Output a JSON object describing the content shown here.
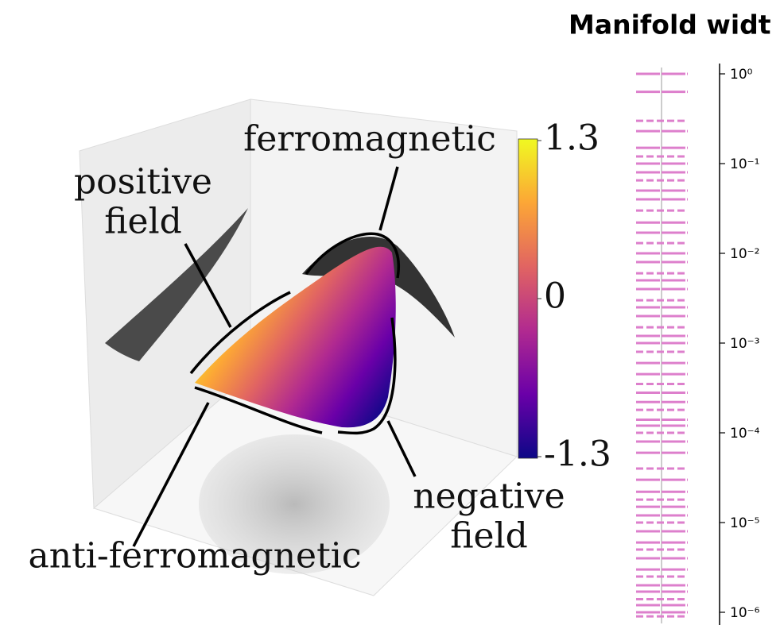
{
  "chart_data": [
    {
      "type": "manifold3d",
      "annotations": [
        [
          "ferromagnetic"
        ],
        [
          "positive",
          "field"
        ],
        [
          "negative",
          "field"
        ],
        [
          "anti-ferromagnetic"
        ]
      ],
      "colormap": [
        "#0d0887",
        "#6a00a8",
        "#b12a90",
        "#e16462",
        "#fca636",
        "#f0f921"
      ],
      "clim": [
        -1.3,
        1.3
      ],
      "cticks": [
        1.3,
        0,
        -1.3
      ]
    },
    {
      "type": "eventplot",
      "title": "Manifold widt",
      "yscale": "log",
      "color": "#dd7fcc",
      "ylim": [
        8e-07,
        1.3
      ],
      "yticks": [
        {
          "value": 1,
          "label": "10⁰"
        },
        {
          "value": 0.1,
          "label": "10⁻¹"
        },
        {
          "value": 0.01,
          "label": "10⁻²"
        },
        {
          "value": 0.001,
          "label": "10⁻³"
        },
        {
          "value": 0.0001,
          "label": "10⁻⁴"
        },
        {
          "value": 1e-05,
          "label": "10⁻⁵"
        },
        {
          "value": 1e-06,
          "label": "10⁻⁶"
        }
      ],
      "values": [
        1,
        0.63,
        0.3,
        0.23,
        0.15,
        0.12,
        0.1,
        0.08,
        0.065,
        0.05,
        0.04,
        0.03,
        0.022,
        0.017,
        0.013,
        0.01,
        0.008,
        0.006,
        0.005,
        0.004,
        0.003,
        0.0025,
        0.002,
        0.0015,
        0.0012,
        0.001,
        0.0008,
        0.0006,
        0.00045,
        0.00035,
        0.00028,
        0.00022,
        0.00018,
        0.00014,
        0.00012,
        0.0001,
        8e-05,
        6e-05,
        4e-05,
        3e-05,
        2.2e-05,
        1.8e-05,
        1.5e-05,
        1.2e-05,
        1e-05,
        8e-06,
        6e-06,
        5e-06,
        4e-06,
        3e-06,
        2.5e-06,
        2e-06,
        1.7e-06,
        1.4e-06,
        1.2e-06,
        1e-06,
        9e-07
      ]
    }
  ]
}
